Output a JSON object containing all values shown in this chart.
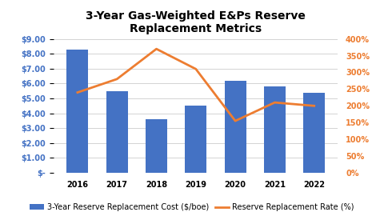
{
  "title": "3-Year Gas-Weighted E&Ps Reserve\nReplacement Metrics",
  "years": [
    2016,
    2017,
    2018,
    2019,
    2020,
    2021,
    2022
  ],
  "bar_values": [
    8.3,
    5.5,
    3.6,
    4.5,
    6.2,
    5.8,
    5.4
  ],
  "line_values": [
    240,
    280,
    370,
    310,
    155,
    210,
    200
  ],
  "bar_color": "#4472C4",
  "line_color": "#ED7D31",
  "left_ylim": [
    0,
    9.0
  ],
  "right_ylim": [
    0,
    400
  ],
  "left_yticks": [
    0,
    1.0,
    2.0,
    3.0,
    4.0,
    5.0,
    6.0,
    7.0,
    8.0,
    9.0
  ],
  "right_yticks": [
    0,
    50,
    100,
    150,
    200,
    250,
    300,
    350,
    400
  ],
  "left_yticklabels": [
    "$-",
    "$1.00",
    "$2.00",
    "$3.00",
    "$4.00",
    "$5.00",
    "$6.00",
    "$7.00",
    "$8.00",
    "$9.00"
  ],
  "right_yticklabels": [
    "0%",
    "50%",
    "100%",
    "150%",
    "200%",
    "250%",
    "300%",
    "350%",
    "400%"
  ],
  "legend_bar_label": "3-Year Reserve Replacement Cost ($/boe)",
  "legend_line_label": "Reserve Replacement Rate (%)",
  "left_axis_color": "#4472C4",
  "right_axis_color": "#ED7D31",
  "title_fontsize": 10,
  "tick_fontsize": 7,
  "legend_fontsize": 7,
  "background_color": "#FFFFFF",
  "grid_color": "#D3D3D3"
}
